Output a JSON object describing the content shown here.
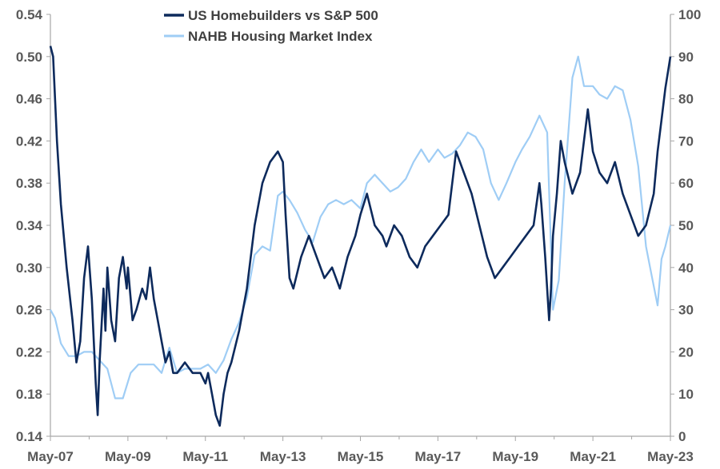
{
  "colors": {
    "homebuilders": "#0d2a5c",
    "nahb": "#9fcdf5",
    "axis": "#a6a6a6",
    "text": "#595959"
  },
  "chart_data": {
    "type": "line",
    "title": "",
    "xlabel": "",
    "ylabel": "",
    "y2label": "",
    "grid": false,
    "legend": {
      "position": "top",
      "entries": [
        "US Homebuilders vs S&P 500",
        "NAHB Housing Market Index"
      ]
    },
    "x_ticks": [
      "May-07",
      "May-09",
      "May-11",
      "May-13",
      "May-15",
      "May-17",
      "May-19",
      "May-21",
      "May-23"
    ],
    "x_range": [
      2007.33,
      2023.33
    ],
    "ylim": [
      0.14,
      0.54
    ],
    "y_ticks": [
      "0.14",
      "0.18",
      "0.22",
      "0.26",
      "0.30",
      "0.34",
      "0.38",
      "0.42",
      "0.46",
      "0.50",
      "0.54"
    ],
    "y2lim": [
      0,
      100
    ],
    "y2_ticks": [
      "0",
      "10",
      "20",
      "30",
      "40",
      "50",
      "60",
      "70",
      "80",
      "90",
      "100"
    ],
    "series": [
      {
        "name": "US Homebuilders vs S&P 500",
        "axis": "left",
        "x": [
          2007.33,
          2007.4,
          2007.5,
          2007.6,
          2007.75,
          2007.9,
          2008.0,
          2008.1,
          2008.2,
          2008.3,
          2008.4,
          2008.5,
          2008.55,
          2008.6,
          2008.7,
          2008.75,
          2008.8,
          2008.9,
          2009.0,
          2009.1,
          2009.2,
          2009.3,
          2009.33,
          2009.45,
          2009.55,
          2009.7,
          2009.8,
          2009.9,
          2010.0,
          2010.1,
          2010.2,
          2010.3,
          2010.4,
          2010.5,
          2010.6,
          2010.8,
          2011.0,
          2011.2,
          2011.33,
          2011.4,
          2011.5,
          2011.6,
          2011.7,
          2011.8,
          2011.9,
          2012.0,
          2012.2,
          2012.4,
          2012.6,
          2012.8,
          2013.0,
          2013.2,
          2013.33,
          2013.4,
          2013.5,
          2013.6,
          2013.8,
          2014.0,
          2014.2,
          2014.4,
          2014.6,
          2014.8,
          2015.0,
          2015.2,
          2015.33,
          2015.5,
          2015.7,
          2015.9,
          2016.0,
          2016.2,
          2016.4,
          2016.6,
          2016.8,
          2017.0,
          2017.2,
          2017.4,
          2017.6,
          2017.8,
          2018.0,
          2018.2,
          2018.4,
          2018.6,
          2018.8,
          2019.0,
          2019.2,
          2019.4,
          2019.6,
          2019.8,
          2019.95,
          2020.0,
          2020.1,
          2020.2,
          2020.25,
          2020.3,
          2020.4,
          2020.5,
          2020.6,
          2020.8,
          2021.0,
          2021.2,
          2021.33,
          2021.5,
          2021.7,
          2021.9,
          2022.1,
          2022.3,
          2022.5,
          2022.7,
          2022.9,
          2023.0,
          2023.1,
          2023.2,
          2023.33
        ],
        "values": [
          0.51,
          0.5,
          0.42,
          0.36,
          0.3,
          0.25,
          0.21,
          0.23,
          0.29,
          0.32,
          0.27,
          0.19,
          0.16,
          0.21,
          0.28,
          0.24,
          0.3,
          0.25,
          0.23,
          0.29,
          0.31,
          0.28,
          0.3,
          0.25,
          0.26,
          0.28,
          0.27,
          0.3,
          0.27,
          0.25,
          0.23,
          0.21,
          0.22,
          0.2,
          0.2,
          0.21,
          0.2,
          0.2,
          0.19,
          0.2,
          0.18,
          0.16,
          0.15,
          0.18,
          0.2,
          0.21,
          0.24,
          0.28,
          0.34,
          0.38,
          0.4,
          0.41,
          0.4,
          0.35,
          0.29,
          0.28,
          0.31,
          0.33,
          0.31,
          0.29,
          0.3,
          0.28,
          0.31,
          0.33,
          0.35,
          0.37,
          0.34,
          0.33,
          0.32,
          0.34,
          0.33,
          0.31,
          0.3,
          0.32,
          0.33,
          0.34,
          0.35,
          0.41,
          0.39,
          0.37,
          0.34,
          0.31,
          0.29,
          0.3,
          0.31,
          0.32,
          0.33,
          0.34,
          0.38,
          0.36,
          0.31,
          0.25,
          0.28,
          0.33,
          0.37,
          0.42,
          0.4,
          0.37,
          0.39,
          0.45,
          0.41,
          0.39,
          0.38,
          0.4,
          0.37,
          0.35,
          0.33,
          0.34,
          0.37,
          0.41,
          0.44,
          0.47,
          0.5
        ]
      },
      {
        "name": "NAHB Housing Market Index",
        "axis": "right",
        "x": [
          2007.33,
          2007.45,
          2007.6,
          2007.8,
          2008.0,
          2008.2,
          2008.4,
          2008.6,
          2008.8,
          2009.0,
          2009.2,
          2009.4,
          2009.6,
          2009.8,
          2010.0,
          2010.2,
          2010.4,
          2010.6,
          2010.8,
          2011.0,
          2011.2,
          2011.4,
          2011.6,
          2011.8,
          2012.0,
          2012.2,
          2012.4,
          2012.6,
          2012.8,
          2013.0,
          2013.2,
          2013.33,
          2013.5,
          2013.7,
          2013.9,
          2014.1,
          2014.3,
          2014.5,
          2014.7,
          2014.9,
          2015.1,
          2015.33,
          2015.5,
          2015.7,
          2015.9,
          2016.1,
          2016.3,
          2016.5,
          2016.7,
          2016.9,
          2017.1,
          2017.33,
          2017.5,
          2017.7,
          2017.9,
          2018.1,
          2018.3,
          2018.5,
          2018.7,
          2018.9,
          2019.1,
          2019.33,
          2019.5,
          2019.7,
          2019.95,
          2020.15,
          2020.3,
          2020.45,
          2020.6,
          2020.8,
          2020.95,
          2021.1,
          2021.33,
          2021.5,
          2021.7,
          2021.9,
          2022.1,
          2022.3,
          2022.5,
          2022.7,
          2022.85,
          2023.0,
          2023.1,
          2023.2,
          2023.33
        ],
        "values": [
          30,
          28,
          22,
          19,
          19,
          20,
          20,
          18,
          16,
          9,
          9,
          15,
          17,
          17,
          17,
          15,
          21,
          15,
          16,
          16,
          16,
          17,
          15,
          18,
          23,
          27,
          33,
          43,
          45,
          44,
          57,
          58,
          56,
          53,
          49,
          46,
          52,
          55,
          56,
          55,
          56,
          54,
          60,
          62,
          60,
          58,
          59,
          61,
          65,
          68,
          65,
          68,
          66,
          67,
          69,
          72,
          71,
          68,
          60,
          56,
          60,
          65,
          68,
          71,
          76,
          72,
          30,
          37,
          60,
          85,
          90,
          83,
          83,
          81,
          80,
          83,
          82,
          75,
          64,
          45,
          38,
          31,
          42,
          45,
          50
        ]
      }
    ]
  }
}
